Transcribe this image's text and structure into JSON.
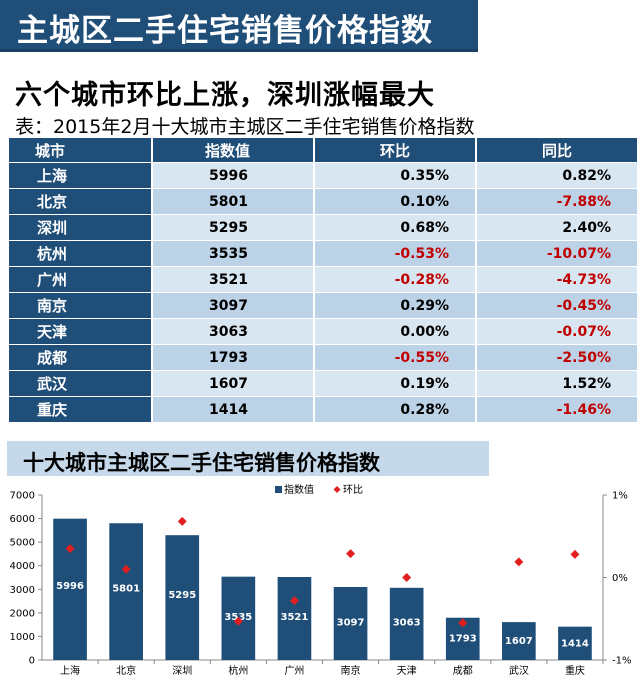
{
  "header": {
    "title": "主城区二手住宅销售价格指数"
  },
  "headline": "六个城市环比上涨，深圳涨幅最大",
  "table_caption": "表：2015年2月十大城市主城区二手住宅销售价格指数",
  "table": {
    "columns": [
      "城市",
      "指数值",
      "环比",
      "同比"
    ],
    "rows": [
      {
        "city": "上海",
        "index": "5996",
        "mom": "0.35%",
        "yoy": "0.82%"
      },
      {
        "city": "北京",
        "index": "5801",
        "mom": "0.10%",
        "yoy": "-7.88%"
      },
      {
        "city": "深圳",
        "index": "5295",
        "mom": "0.68%",
        "yoy": "2.40%"
      },
      {
        "city": "杭州",
        "index": "3535",
        "mom": "-0.53%",
        "yoy": "-10.07%"
      },
      {
        "city": "广州",
        "index": "3521",
        "mom": "-0.28%",
        "yoy": "-4.73%"
      },
      {
        "city": "南京",
        "index": "3097",
        "mom": "0.29%",
        "yoy": "-0.45%"
      },
      {
        "city": "天津",
        "index": "3063",
        "mom": "0.00%",
        "yoy": "-0.07%"
      },
      {
        "city": "成都",
        "index": "1793",
        "mom": "-0.55%",
        "yoy": "-2.50%"
      },
      {
        "city": "武汉",
        "index": "1607",
        "mom": "0.19%",
        "yoy": "1.52%"
      },
      {
        "city": "重庆",
        "index": "1414",
        "mom": "0.28%",
        "yoy": "-1.46%"
      }
    ]
  },
  "chart_title": "十大城市主城区二手住宅销售价格指数",
  "chart_data": {
    "type": "bar",
    "title": "十大城市主城区二手住宅销售价格指数",
    "categories": [
      "上海",
      "北京",
      "深圳",
      "杭州",
      "广州",
      "南京",
      "天津",
      "成都",
      "武汉",
      "重庆"
    ],
    "series": [
      {
        "name": "指数值",
        "type": "bar",
        "axis": "left",
        "values": [
          5996,
          5801,
          5295,
          3535,
          3521,
          3097,
          3063,
          1793,
          1607,
          1414
        ]
      },
      {
        "name": "环比",
        "type": "scatter",
        "axis": "right",
        "values": [
          0.35,
          0.1,
          0.68,
          -0.53,
          -0.28,
          0.29,
          0.0,
          -0.55,
          0.19,
          0.28
        ]
      }
    ],
    "ylim_left": [
      0,
      7000
    ],
    "yticks_left": [
      "0",
      "1000",
      "2000",
      "3000",
      "4000",
      "5000",
      "6000",
      "7000"
    ],
    "ylim_right": [
      -1,
      1
    ],
    "yticks_right": [
      "1%",
      "0%",
      "-1%"
    ],
    "legend": [
      "指数值",
      "环比"
    ],
    "legend_position": "top",
    "bar_color": "#1f4e79",
    "marker_color": "#e02020"
  }
}
